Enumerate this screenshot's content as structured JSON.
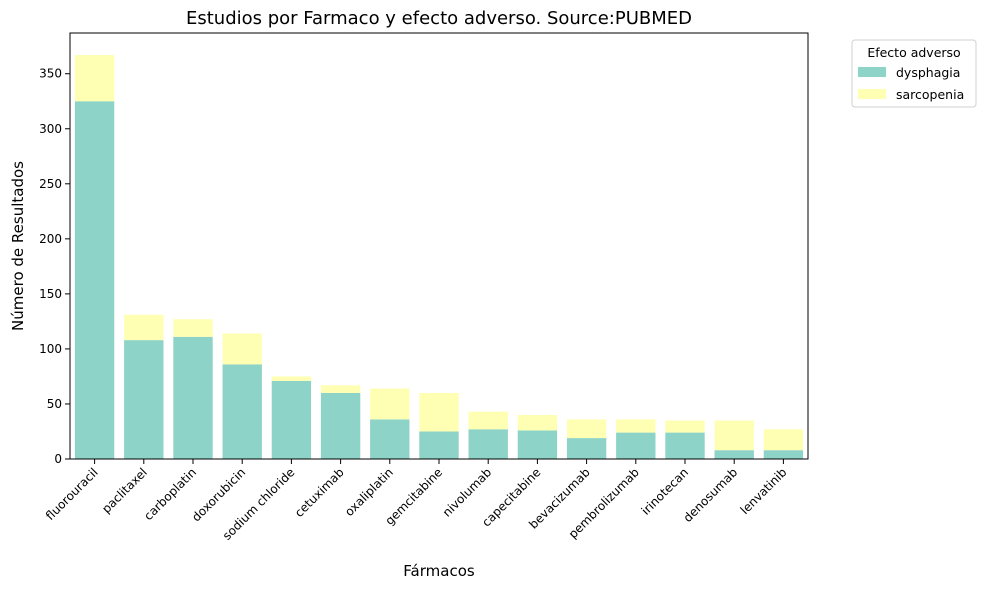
{
  "chart_data": {
    "type": "bar",
    "stacked": true,
    "title": "Estudios por Farmaco y efecto adverso. Source:PUBMED",
    "xlabel": "Fármacos",
    "ylabel": "Número de Resultados",
    "ylim": [
      0,
      387
    ],
    "yticks": [
      0,
      50,
      100,
      150,
      200,
      250,
      300,
      350
    ],
    "grid": false,
    "legend": {
      "title": "Efecto adverso",
      "placement": "outside-top-right"
    },
    "categories": [
      "fluorouracil",
      "paclitaxel",
      "carboplatin",
      "doxorubicin",
      "sodium chloride",
      "cetuximab",
      "oxaliplatin",
      "gemcitabine",
      "nivolumab",
      "capecitabine",
      "bevacizumab",
      "pembrolizumab",
      "irinotecan",
      "denosumab",
      "lenvatinib"
    ],
    "series": [
      {
        "name": "dysphagia",
        "color": "#8dd3c7",
        "values": [
          325,
          108,
          111,
          86,
          71,
          60,
          36,
          25,
          27,
          26,
          19,
          24,
          24,
          8,
          8
        ]
      },
      {
        "name": "sarcopenia",
        "color": "#ffffb3",
        "values": [
          42,
          23,
          16,
          28,
          4,
          7,
          28,
          35,
          16,
          14,
          17,
          12,
          11,
          27,
          19
        ]
      }
    ]
  }
}
